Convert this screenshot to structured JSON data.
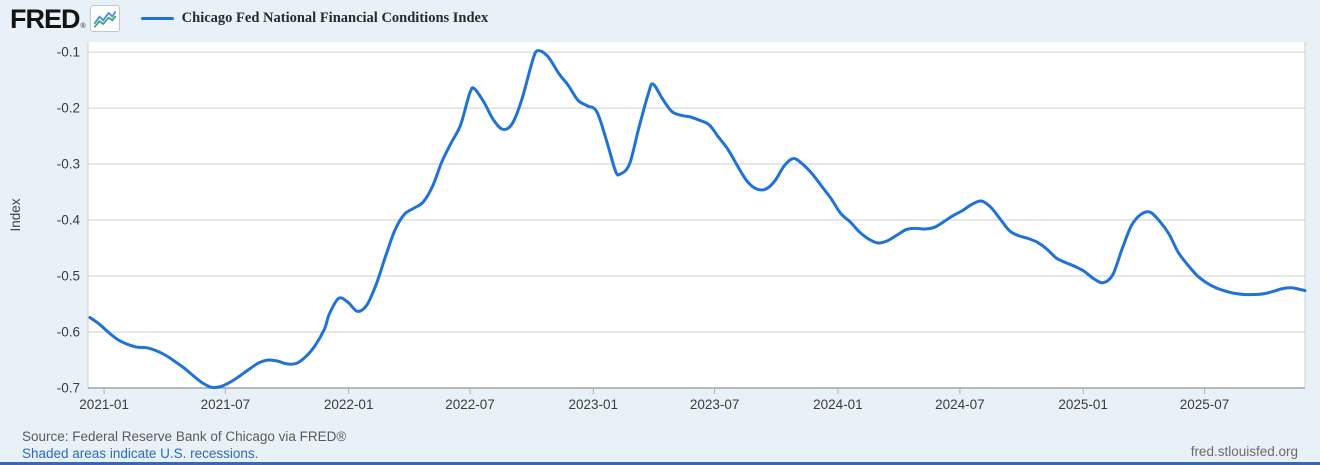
{
  "colors": {
    "background": "#e9f1f8",
    "plot_background": "#ffffff",
    "series_line": "#2172d6",
    "grid_line": "#cfcfcf",
    "axis_line": "#8f959b",
    "tick_mark": "#b0b0b0",
    "link_blue": "#2a6cb5",
    "bottom_bar": "#3a67ad",
    "logo_icon_blue": "#4a8fd9",
    "logo_icon_green": "#3faa72"
  },
  "header": {
    "logo_text": "FRED",
    "logo_registered": "®",
    "legend_label": "Chicago Fed National Financial Conditions Index"
  },
  "footer": {
    "source": "Source: Federal Reserve Bank of Chicago via FRED®",
    "recession_note": "Shaded areas indicate U.S. recessions.",
    "site": "fred.stlouisfed.org"
  },
  "chart_data": {
    "type": "line",
    "title": "Chicago Fed National Financial Conditions Index",
    "xlabel": "",
    "ylabel": "Index",
    "grid": true,
    "legend_position": "top-left",
    "ylim": [
      -0.7,
      -0.1
    ],
    "y_headroom": 0.018,
    "xlim": [
      "2020-12-08",
      "2025-11-28"
    ],
    "y_ticks": [
      -0.1,
      -0.2,
      -0.3,
      -0.4,
      -0.5,
      -0.6,
      -0.7
    ],
    "x_ticks": [
      "2021-01",
      "2021-07",
      "2022-01",
      "2022-07",
      "2023-01",
      "2023-07",
      "2024-01",
      "2024-07",
      "2025-01",
      "2025-07"
    ],
    "series": [
      {
        "name": "Chicago Fed National Financial Conditions Index",
        "color": "#2172d6",
        "points": [
          [
            "2020-12-11",
            -0.574
          ],
          [
            "2020-12-25",
            -0.586
          ],
          [
            "2021-01-08",
            -0.601
          ],
          [
            "2021-01-22",
            -0.614
          ],
          [
            "2021-02-05",
            -0.622
          ],
          [
            "2021-02-19",
            -0.627
          ],
          [
            "2021-03-05",
            -0.628
          ],
          [
            "2021-03-19",
            -0.633
          ],
          [
            "2021-04-02",
            -0.641
          ],
          [
            "2021-04-16",
            -0.652
          ],
          [
            "2021-04-30",
            -0.664
          ],
          [
            "2021-05-14",
            -0.678
          ],
          [
            "2021-05-28",
            -0.691
          ],
          [
            "2021-06-11",
            -0.699
          ],
          [
            "2021-06-25",
            -0.697
          ],
          [
            "2021-07-09",
            -0.689
          ],
          [
            "2021-07-23",
            -0.678
          ],
          [
            "2021-08-06",
            -0.666
          ],
          [
            "2021-08-20",
            -0.655
          ],
          [
            "2021-09-03",
            -0.65
          ],
          [
            "2021-09-17",
            -0.652
          ],
          [
            "2021-10-01",
            -0.657
          ],
          [
            "2021-10-15",
            -0.656
          ],
          [
            "2021-10-29",
            -0.644
          ],
          [
            "2021-11-12",
            -0.624
          ],
          [
            "2021-11-26",
            -0.594
          ],
          [
            "2021-12-03",
            -0.568
          ],
          [
            "2021-12-17",
            -0.54
          ],
          [
            "2021-12-31",
            -0.547
          ],
          [
            "2022-01-14",
            -0.563
          ],
          [
            "2022-01-28",
            -0.552
          ],
          [
            "2022-02-11",
            -0.515
          ],
          [
            "2022-02-25",
            -0.465
          ],
          [
            "2022-03-11",
            -0.418
          ],
          [
            "2022-03-25",
            -0.39
          ],
          [
            "2022-04-08",
            -0.379
          ],
          [
            "2022-04-22",
            -0.368
          ],
          [
            "2022-05-06",
            -0.34
          ],
          [
            "2022-05-20",
            -0.296
          ],
          [
            "2022-06-03",
            -0.262
          ],
          [
            "2022-06-17",
            -0.23
          ],
          [
            "2022-07-01",
            -0.172
          ],
          [
            "2022-07-08",
            -0.166
          ],
          [
            "2022-07-22",
            -0.19
          ],
          [
            "2022-08-05",
            -0.221
          ],
          [
            "2022-08-19",
            -0.238
          ],
          [
            "2022-09-02",
            -0.228
          ],
          [
            "2022-09-16",
            -0.186
          ],
          [
            "2022-09-30",
            -0.125
          ],
          [
            "2022-10-07",
            -0.1
          ],
          [
            "2022-10-14",
            -0.098
          ],
          [
            "2022-10-21",
            -0.103
          ],
          [
            "2022-10-28",
            -0.112
          ],
          [
            "2022-11-11",
            -0.139
          ],
          [
            "2022-11-25",
            -0.16
          ],
          [
            "2022-12-09",
            -0.186
          ],
          [
            "2022-12-23",
            -0.196
          ],
          [
            "2023-01-06",
            -0.206
          ],
          [
            "2023-01-20",
            -0.255
          ],
          [
            "2023-02-03",
            -0.312
          ],
          [
            "2023-02-10",
            -0.318
          ],
          [
            "2023-02-24",
            -0.3
          ],
          [
            "2023-03-10",
            -0.235
          ],
          [
            "2023-03-24",
            -0.175
          ],
          [
            "2023-03-31",
            -0.157
          ],
          [
            "2023-04-14",
            -0.183
          ],
          [
            "2023-04-28",
            -0.206
          ],
          [
            "2023-05-12",
            -0.213
          ],
          [
            "2023-05-26",
            -0.216
          ],
          [
            "2023-06-09",
            -0.222
          ],
          [
            "2023-06-23",
            -0.23
          ],
          [
            "2023-07-07",
            -0.252
          ],
          [
            "2023-07-21",
            -0.274
          ],
          [
            "2023-08-04",
            -0.303
          ],
          [
            "2023-08-18",
            -0.33
          ],
          [
            "2023-09-01",
            -0.344
          ],
          [
            "2023-09-15",
            -0.345
          ],
          [
            "2023-09-29",
            -0.33
          ],
          [
            "2023-10-13",
            -0.303
          ],
          [
            "2023-10-27",
            -0.29
          ],
          [
            "2023-11-10",
            -0.301
          ],
          [
            "2023-11-24",
            -0.318
          ],
          [
            "2023-12-08",
            -0.34
          ],
          [
            "2023-12-22",
            -0.362
          ],
          [
            "2024-01-05",
            -0.388
          ],
          [
            "2024-01-19",
            -0.403
          ],
          [
            "2024-02-02",
            -0.421
          ],
          [
            "2024-02-16",
            -0.434
          ],
          [
            "2024-03-01",
            -0.441
          ],
          [
            "2024-03-15",
            -0.437
          ],
          [
            "2024-03-29",
            -0.427
          ],
          [
            "2024-04-12",
            -0.417
          ],
          [
            "2024-04-26",
            -0.415
          ],
          [
            "2024-05-10",
            -0.416
          ],
          [
            "2024-05-24",
            -0.413
          ],
          [
            "2024-06-07",
            -0.403
          ],
          [
            "2024-06-21",
            -0.392
          ],
          [
            "2024-07-05",
            -0.383
          ],
          [
            "2024-07-19",
            -0.372
          ],
          [
            "2024-08-02",
            -0.366
          ],
          [
            "2024-08-16",
            -0.377
          ],
          [
            "2024-08-30",
            -0.398
          ],
          [
            "2024-09-13",
            -0.419
          ],
          [
            "2024-09-27",
            -0.428
          ],
          [
            "2024-10-11",
            -0.433
          ],
          [
            "2024-10-25",
            -0.44
          ],
          [
            "2024-11-08",
            -0.452
          ],
          [
            "2024-11-22",
            -0.468
          ],
          [
            "2024-12-06",
            -0.476
          ],
          [
            "2024-12-20",
            -0.483
          ],
          [
            "2025-01-03",
            -0.492
          ],
          [
            "2025-01-17",
            -0.505
          ],
          [
            "2025-01-31",
            -0.512
          ],
          [
            "2025-02-14",
            -0.498
          ],
          [
            "2025-02-28",
            -0.452
          ],
          [
            "2025-03-14",
            -0.41
          ],
          [
            "2025-03-28",
            -0.39
          ],
          [
            "2025-04-11",
            -0.386
          ],
          [
            "2025-04-25",
            -0.402
          ],
          [
            "2025-05-09",
            -0.425
          ],
          [
            "2025-05-23",
            -0.458
          ],
          [
            "2025-06-06",
            -0.48
          ],
          [
            "2025-06-20",
            -0.499
          ],
          [
            "2025-07-04",
            -0.512
          ],
          [
            "2025-07-18",
            -0.521
          ],
          [
            "2025-08-01",
            -0.527
          ],
          [
            "2025-08-15",
            -0.531
          ],
          [
            "2025-08-29",
            -0.533
          ],
          [
            "2025-09-12",
            -0.533
          ],
          [
            "2025-09-26",
            -0.532
          ],
          [
            "2025-10-10",
            -0.528
          ],
          [
            "2025-10-24",
            -0.523
          ],
          [
            "2025-11-07",
            -0.521
          ],
          [
            "2025-11-21",
            -0.524
          ],
          [
            "2025-11-28",
            -0.526
          ]
        ]
      }
    ]
  }
}
